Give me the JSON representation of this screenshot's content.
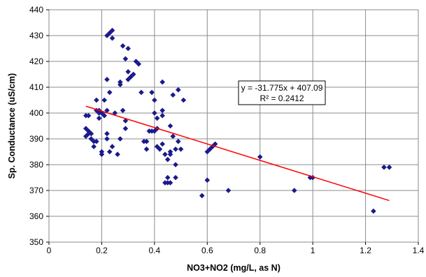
{
  "chart_data": {
    "type": "scatter",
    "xlabel": "NO3+NO2  (mg/L, as N)",
    "ylabel": "Sp. Conductance (uS/cm)",
    "xlim": [
      0,
      1.4
    ],
    "ylim": [
      350,
      440
    ],
    "x_ticks": [
      "0",
      "0.2",
      "0.4",
      "0.6",
      "0.8",
      "1",
      "1.2",
      "1.4"
    ],
    "x_tick_values": [
      0,
      0.2,
      0.4,
      0.6,
      0.8,
      1.0,
      1.2,
      1.4
    ],
    "y_ticks": [
      "350",
      "360",
      "370",
      "380",
      "390",
      "400",
      "410",
      "420",
      "430",
      "440"
    ],
    "y_tick_values": [
      350,
      360,
      370,
      380,
      390,
      400,
      410,
      420,
      430,
      440
    ],
    "grid": true,
    "marker_color": "#1a1a8c",
    "trendline": {
      "slope": -31.775,
      "intercept": 407.09,
      "x_range": [
        0.14,
        1.29
      ],
      "color": "#ff0000",
      "equation": "y = -31.775x + 407.09",
      "r_squared": "R² = 0.2412"
    },
    "points": [
      [
        0.14,
        399
      ],
      [
        0.15,
        399
      ],
      [
        0.14,
        394
      ],
      [
        0.15,
        393
      ],
      [
        0.15,
        392
      ],
      [
        0.14,
        391
      ],
      [
        0.16,
        392
      ],
      [
        0.16,
        390
      ],
      [
        0.17,
        389
      ],
      [
        0.17,
        387
      ],
      [
        0.18,
        389
      ],
      [
        0.18,
        401
      ],
      [
        0.18,
        405
      ],
      [
        0.19,
        401
      ],
      [
        0.19,
        400
      ],
      [
        0.2,
        400
      ],
      [
        0.19,
        398
      ],
      [
        0.2,
        385
      ],
      [
        0.2,
        384
      ],
      [
        0.21,
        399
      ],
      [
        0.21,
        405
      ],
      [
        0.22,
        401
      ],
      [
        0.22,
        413
      ],
      [
        0.22,
        430
      ],
      [
        0.22,
        392
      ],
      [
        0.22,
        390
      ],
      [
        0.23,
        385
      ],
      [
        0.23,
        408
      ],
      [
        0.23,
        431
      ],
      [
        0.24,
        432
      ],
      [
        0.24,
        429
      ],
      [
        0.24,
        387
      ],
      [
        0.25,
        400
      ],
      [
        0.26,
        384
      ],
      [
        0.27,
        390
      ],
      [
        0.27,
        412
      ],
      [
        0.27,
        411
      ],
      [
        0.28,
        426
      ],
      [
        0.28,
        401
      ],
      [
        0.29,
        397
      ],
      [
        0.29,
        394
      ],
      [
        0.29,
        421
      ],
      [
        0.3,
        425
      ],
      [
        0.3,
        416
      ],
      [
        0.3,
        413
      ],
      [
        0.31,
        414
      ],
      [
        0.32,
        415
      ],
      [
        0.33,
        420
      ],
      [
        0.34,
        419
      ],
      [
        0.35,
        408
      ],
      [
        0.36,
        389
      ],
      [
        0.37,
        389
      ],
      [
        0.37,
        386
      ],
      [
        0.38,
        393
      ],
      [
        0.39,
        393
      ],
      [
        0.39,
        408
      ],
      [
        0.4,
        405
      ],
      [
        0.4,
        393
      ],
      [
        0.4,
        400
      ],
      [
        0.41,
        394
      ],
      [
        0.41,
        387
      ],
      [
        0.41,
        398
      ],
      [
        0.42,
        386
      ],
      [
        0.43,
        401
      ],
      [
        0.43,
        412
      ],
      [
        0.43,
        399
      ],
      [
        0.43,
        388
      ],
      [
        0.44,
        384
      ],
      [
        0.44,
        373
      ],
      [
        0.45,
        375
      ],
      [
        0.45,
        373
      ],
      [
        0.45,
        382
      ],
      [
        0.46,
        385
      ],
      [
        0.46,
        395
      ],
      [
        0.46,
        384
      ],
      [
        0.46,
        373
      ],
      [
        0.47,
        407
      ],
      [
        0.47,
        391
      ],
      [
        0.48,
        380
      ],
      [
        0.48,
        375
      ],
      [
        0.48,
        386
      ],
      [
        0.49,
        389
      ],
      [
        0.49,
        409
      ],
      [
        0.5,
        386
      ],
      [
        0.51,
        405
      ],
      [
        0.58,
        368
      ],
      [
        0.6,
        374
      ],
      [
        0.6,
        385
      ],
      [
        0.61,
        386
      ],
      [
        0.62,
        387
      ],
      [
        0.63,
        388
      ],
      [
        0.68,
        370
      ],
      [
        0.8,
        383
      ],
      [
        0.93,
        370
      ],
      [
        0.99,
        375
      ],
      [
        1.0,
        375
      ],
      [
        1.23,
        362
      ],
      [
        1.27,
        379
      ],
      [
        1.29,
        379
      ]
    ]
  }
}
